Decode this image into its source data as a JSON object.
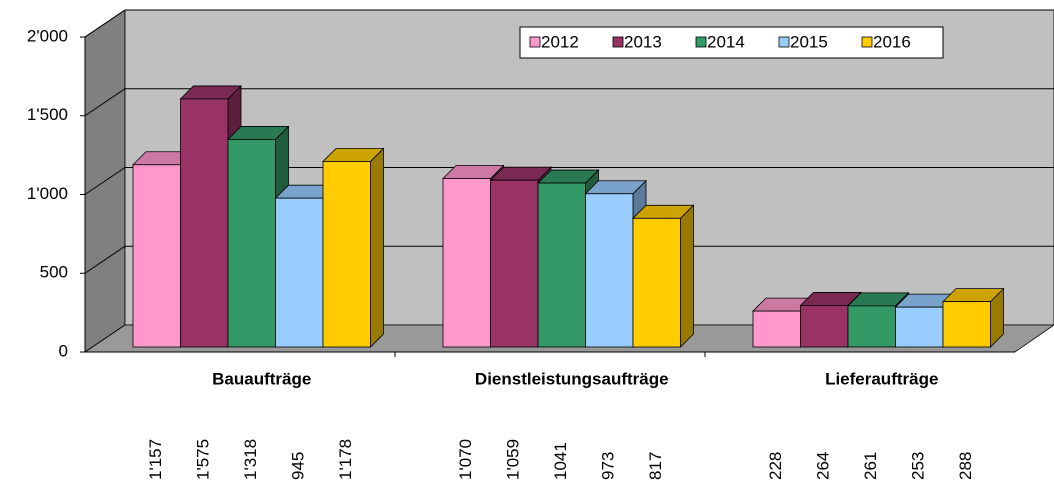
{
  "chart_data": {
    "type": "bar",
    "categories": [
      "Bauaufträge",
      "Dienstleistungsaufträge",
      "Lieferaufträge"
    ],
    "series": [
      {
        "name": "2012",
        "color": "#ff99cc",
        "values": [
          1157,
          1070,
          228
        ],
        "value_labels": [
          "1'157",
          "1'070",
          "228"
        ]
      },
      {
        "name": "2013",
        "color": "#993366",
        "values": [
          1575,
          1059,
          264
        ],
        "value_labels": [
          "1'575",
          "1'059",
          "264"
        ]
      },
      {
        "name": "2014",
        "color": "#339966",
        "values": [
          1318,
          1041,
          261
        ],
        "value_labels": [
          "1'318",
          "1041",
          "261"
        ]
      },
      {
        "name": "2015",
        "color": "#99ccff",
        "values": [
          945,
          973,
          253
        ],
        "value_labels": [
          "945",
          "973",
          "253"
        ]
      },
      {
        "name": "2016",
        "color": "#ffcc00",
        "values": [
          1178,
          817,
          288
        ],
        "value_labels": [
          "1'178",
          "817",
          "288"
        ]
      }
    ],
    "ylim": [
      0,
      2000
    ],
    "yticks": [
      0,
      500,
      {
        "value": 1000,
        "label": "1'000"
      },
      {
        "value": 1500,
        "label": "1'500"
      },
      {
        "value": 2000,
        "label": "2'000"
      }
    ],
    "grid": true,
    "legend": "top-right"
  }
}
